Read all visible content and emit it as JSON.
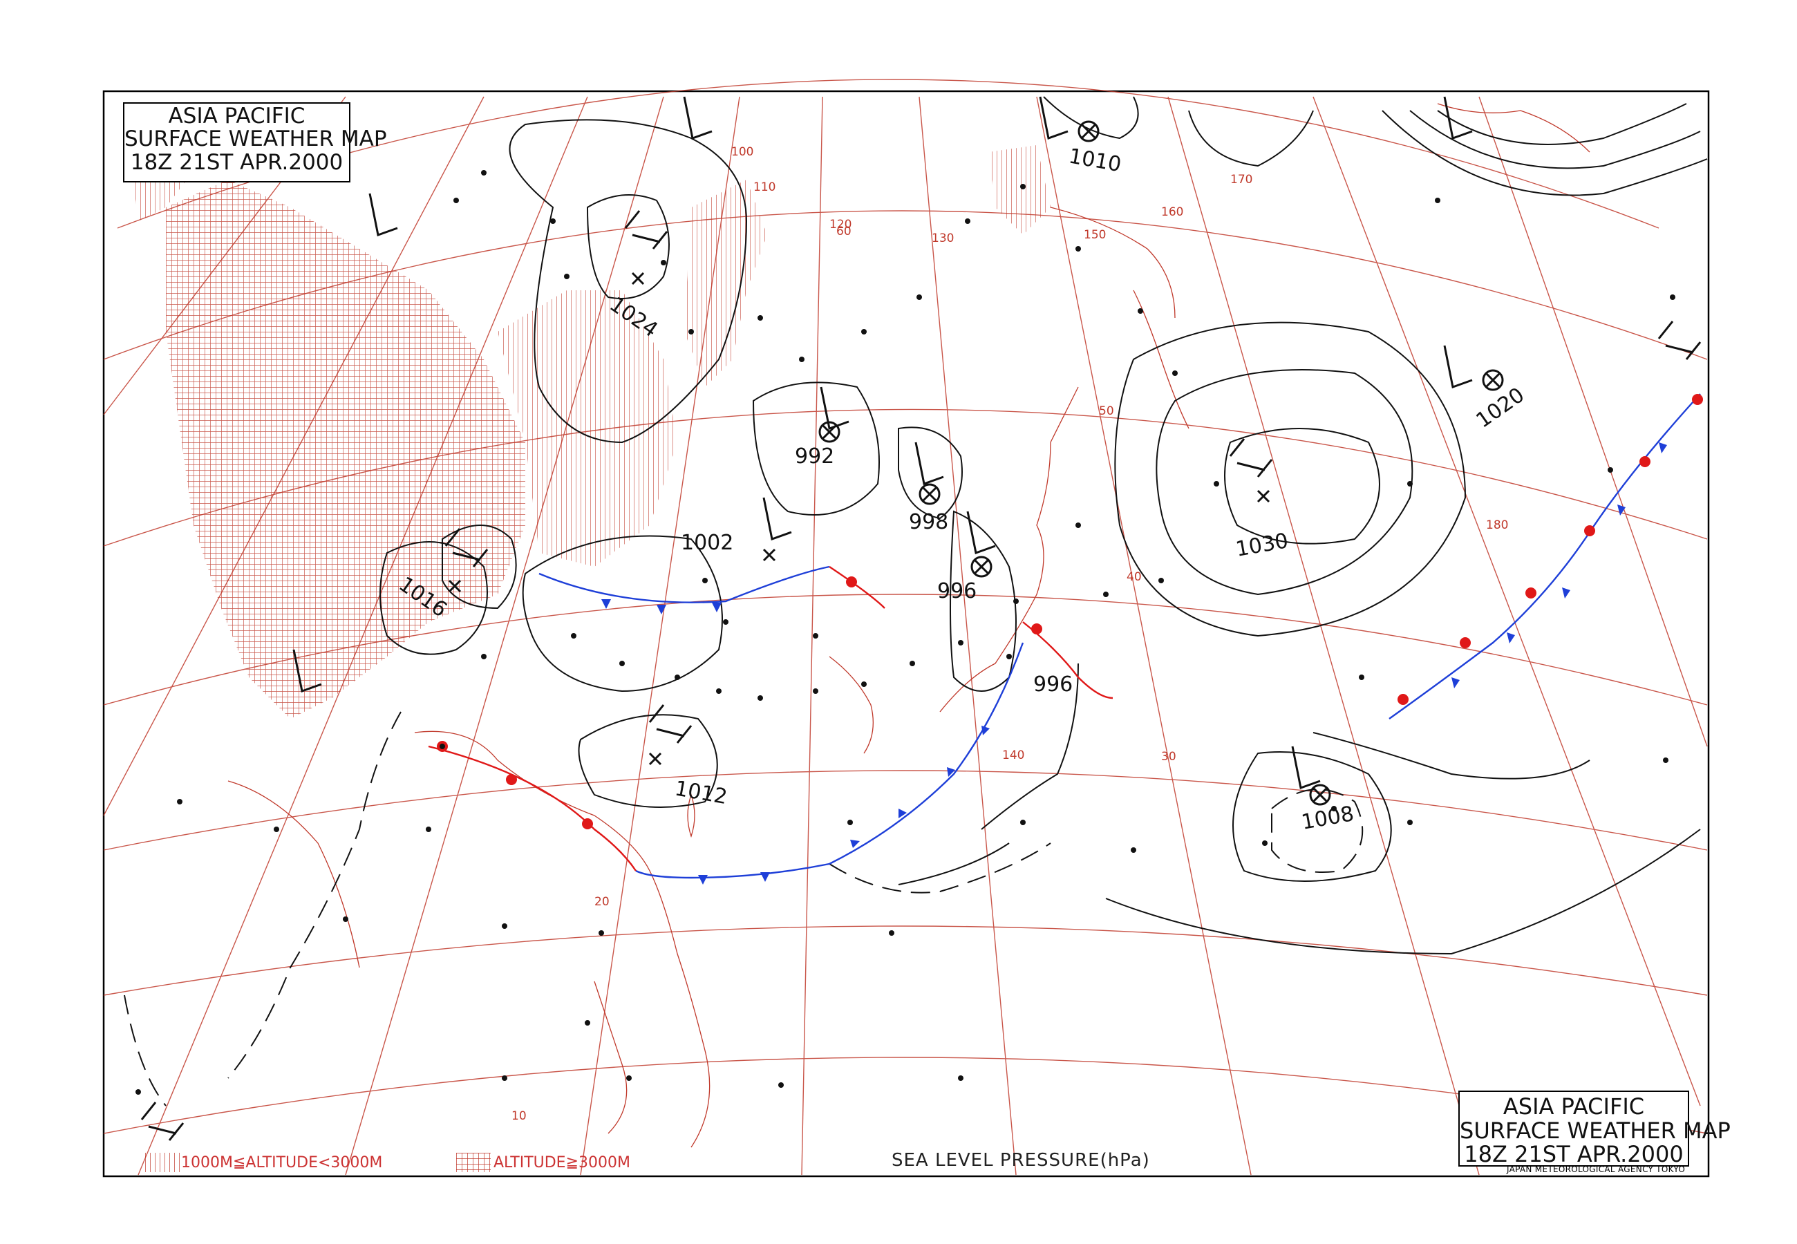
{
  "title_top_left": {
    "line1": "ASIA PACIFIC",
    "line2": "SURFACE WEATHER MAP",
    "line3": "18Z 21ST APR.2000"
  },
  "title_bottom_right": {
    "line1": "ASIA PACIFIC",
    "line2": "SURFACE WEATHER MAP",
    "line3": "18Z 21ST APR.2000"
  },
  "agency": "JAPAN METEOROLOGICAL AGENCY TOKYO",
  "footer": {
    "legend_mid": "1000M≦ALTITUDE<3000M",
    "legend_high": "ALTITUDE≧3000M",
    "unit_label": "SEA LEVEL PRESSURE(hPa)"
  },
  "colors": {
    "grid": "#c0392b",
    "isobar": "#111111",
    "cold_front": "#1e3fd8",
    "warm_front": "#e01818",
    "terrain_hatch": "#c0392b"
  },
  "pressure_centers": [
    {
      "type": "H",
      "value": "1024"
    },
    {
      "type": "H",
      "value": "1016"
    },
    {
      "type": "H",
      "value": "1012"
    },
    {
      "type": "H",
      "value": "1030"
    },
    {
      "type": "L",
      "value": "992"
    },
    {
      "type": "L",
      "value": "998"
    },
    {
      "type": "L",
      "value": "1002"
    },
    {
      "type": "L",
      "value": "996"
    },
    {
      "type": "L",
      "value": "996"
    },
    {
      "type": "L",
      "value": "1010"
    },
    {
      "type": "L",
      "value": "1020"
    },
    {
      "type": "L",
      "value": "1008"
    }
  ],
  "grid_labels": {
    "longitudes": [
      "100",
      "110",
      "120",
      "130",
      "140",
      "150",
      "160",
      "170",
      "180"
    ],
    "latitudes": [
      "60",
      "50",
      "40",
      "30",
      "20",
      "10"
    ]
  },
  "center_labels": {
    "h1024": "1024",
    "h1016": "1016",
    "h1012": "1012",
    "h1030": "1030",
    "l992": "992",
    "l998": "998",
    "l1002": "1002",
    "l996a": "996",
    "l996b": "996",
    "l1010": "1010",
    "l1020": "1020",
    "l1008": "1008"
  }
}
